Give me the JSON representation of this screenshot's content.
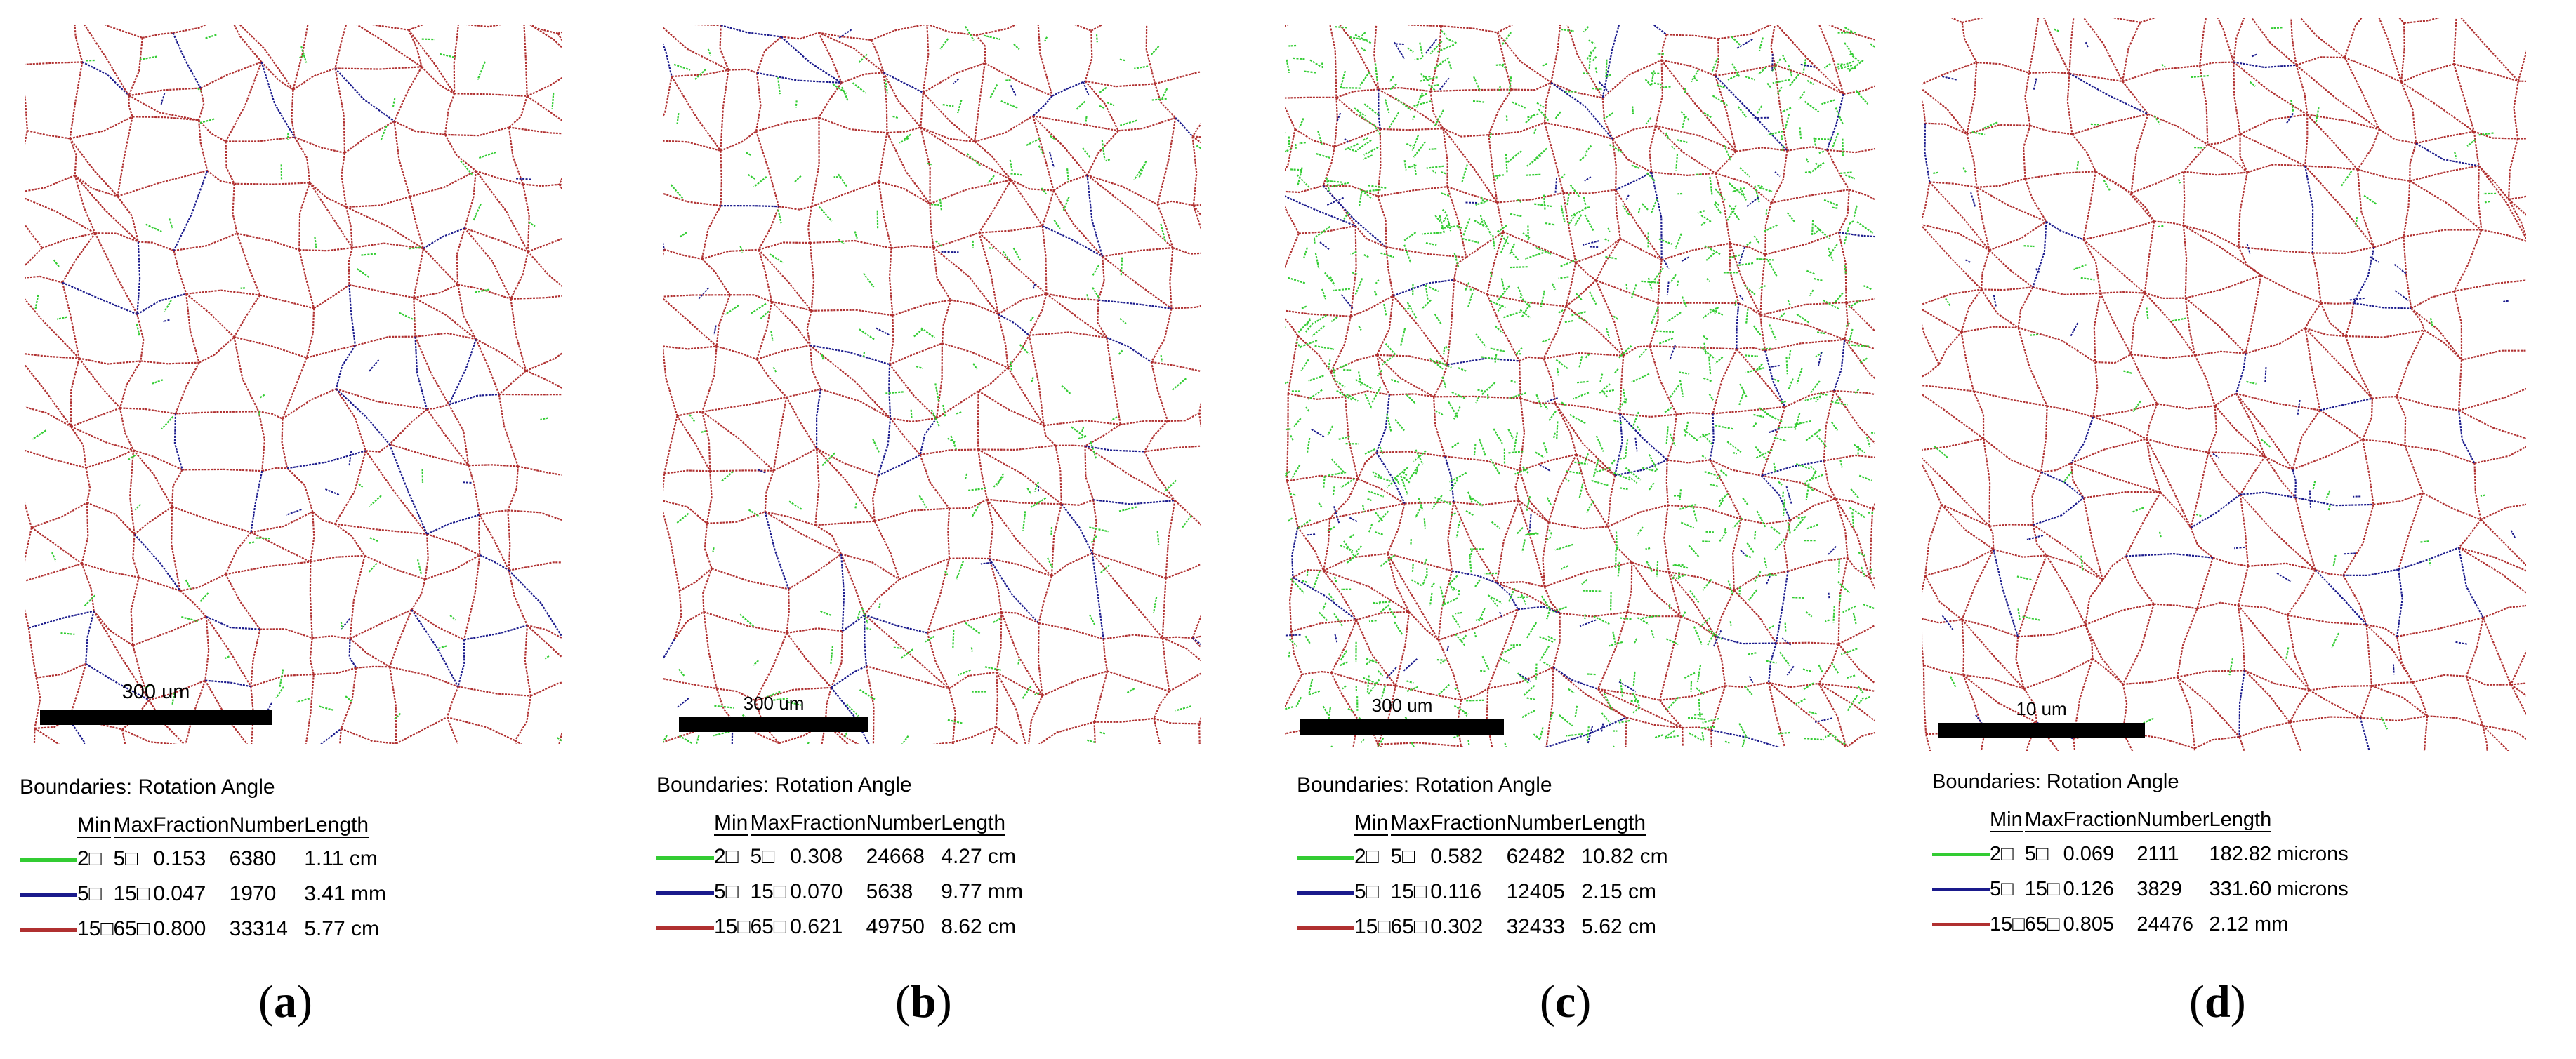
{
  "colors": {
    "low_angle": "#33cc33",
    "medium_angle": "#1a1a8c",
    "high_angle": "#b03030"
  },
  "legend_headers": {
    "title": "Boundaries: Rotation Angle",
    "min": "Min",
    "max": "Max",
    "fraction": "Fraction",
    "number": "Number",
    "length": "Length"
  },
  "panels": [
    {
      "caption_letter": "a",
      "scale_label": "300 um",
      "rows": [
        {
          "min": "2□",
          "max": "5□",
          "fraction": "0.153",
          "number": "6380",
          "length": "1.11 cm"
        },
        {
          "min": "5□",
          "max": "15□",
          "fraction": "0.047",
          "number": "1970",
          "length": "3.41 mm"
        },
        {
          "min": "15□",
          "max": "65□",
          "fraction": "0.800",
          "number": "33314",
          "length": "5.77 cm"
        }
      ]
    },
    {
      "caption_letter": "b",
      "scale_label": "300 um",
      "rows": [
        {
          "min": "2□",
          "max": "5□",
          "fraction": "0.308",
          "number": "24668",
          "length": "4.27 cm"
        },
        {
          "min": "5□",
          "max": "15□",
          "fraction": "0.070",
          "number": "5638",
          "length": "9.77 mm"
        },
        {
          "min": "15□",
          "max": "65□",
          "fraction": "0.621",
          "number": "49750",
          "length": "8.62 cm"
        }
      ]
    },
    {
      "caption_letter": "c",
      "scale_label": "300 um",
      "rows": [
        {
          "min": "2□",
          "max": "5□",
          "fraction": "0.582",
          "number": "62482",
          "length": "10.82 cm"
        },
        {
          "min": "5□",
          "max": "15□",
          "fraction": "0.116",
          "number": "12405",
          "length": "2.15 cm"
        },
        {
          "min": "15□",
          "max": "65□",
          "fraction": "0.302",
          "number": "32433",
          "length": "5.62 cm"
        }
      ]
    },
    {
      "caption_letter": "d",
      "scale_label": "10 um",
      "rows": [
        {
          "min": "2□",
          "max": "5□",
          "fraction": "0.069",
          "number": "2111",
          "length": "182.82 microns"
        },
        {
          "min": "5□",
          "max": "15□",
          "fraction": "0.126",
          "number": "3829",
          "length": "331.60 microns"
        },
        {
          "min": "15□",
          "max": "65□",
          "fraction": "0.805",
          "number": "24476",
          "length": "2.12 mm"
        }
      ]
    }
  ]
}
